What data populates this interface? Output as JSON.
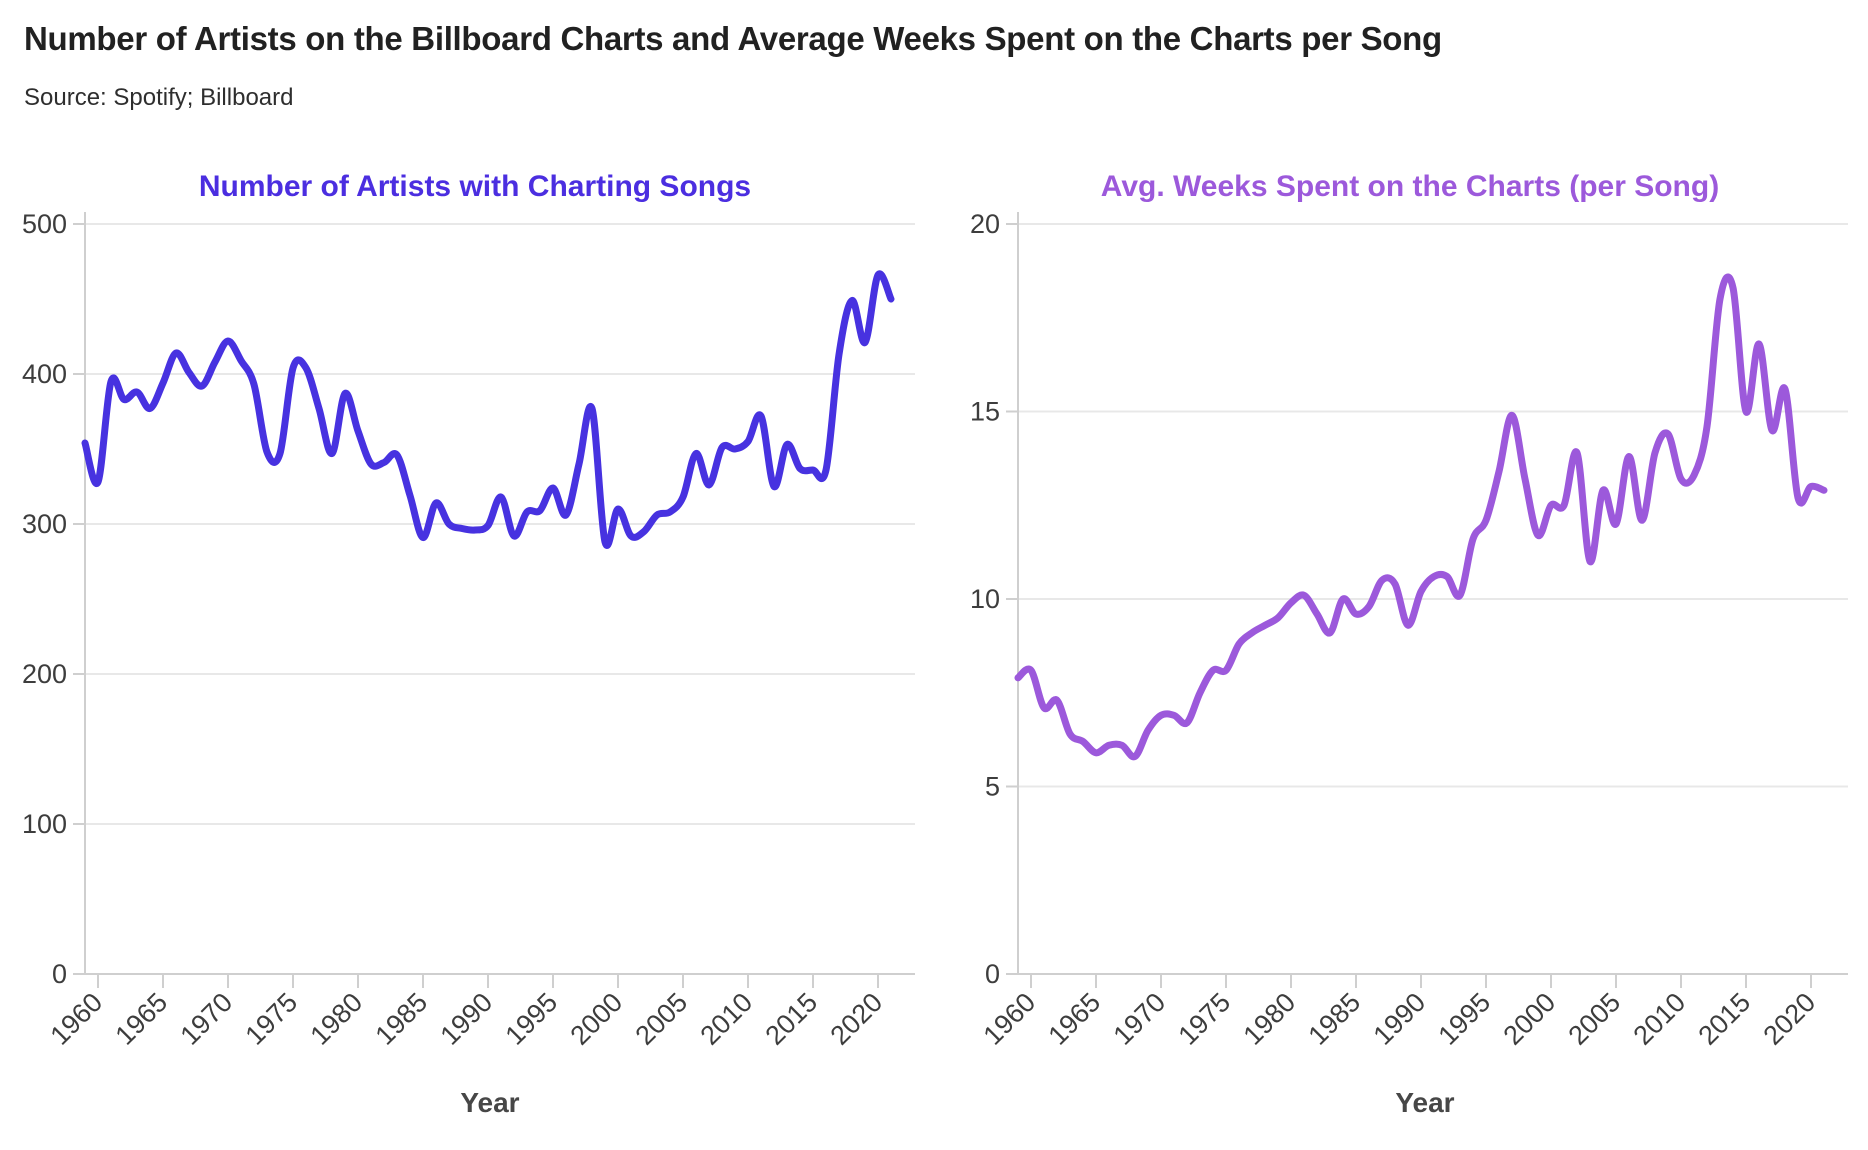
{
  "page": {
    "title": "Number of Artists on the Billboard Charts and Average Weeks Spent on the Charts per Song",
    "source": "Source: Spotify; Billboard"
  },
  "chart_data": [
    {
      "type": "line",
      "title": "Number of Artists with Charting Songs",
      "xlabel": "Year",
      "line_color": "#4732E0",
      "title_color": "#4B2EE0",
      "grid": "horizontal",
      "ylim": [
        0,
        500
      ],
      "yticks": [
        0,
        100,
        200,
        300,
        400,
        500
      ],
      "xticks": [
        1960,
        1965,
        1970,
        1975,
        1980,
        1985,
        1990,
        1995,
        2000,
        2005,
        2010,
        2015,
        2020
      ],
      "x": [
        1959,
        1960,
        1961,
        1962,
        1963,
        1964,
        1965,
        1966,
        1967,
        1968,
        1969,
        1970,
        1971,
        1972,
        1973,
        1974,
        1975,
        1976,
        1977,
        1978,
        1979,
        1980,
        1981,
        1982,
        1983,
        1984,
        1985,
        1986,
        1987,
        1988,
        1989,
        1990,
        1991,
        1992,
        1993,
        1994,
        1995,
        1996,
        1997,
        1998,
        1999,
        2000,
        2001,
        2002,
        2003,
        2004,
        2005,
        2006,
        2007,
        2008,
        2009,
        2010,
        2011,
        2012,
        2013,
        2014,
        2015,
        2016,
        2017,
        2018,
        2019,
        2020,
        2021
      ],
      "values": [
        354,
        328,
        395,
        383,
        388,
        377,
        394,
        414,
        401,
        392,
        408,
        422,
        409,
        393,
        348,
        347,
        404,
        404,
        377,
        347,
        387,
        362,
        340,
        341,
        346,
        319,
        291,
        314,
        300,
        297,
        296,
        299,
        318,
        292,
        308,
        309,
        324,
        306,
        340,
        377,
        288,
        310,
        292,
        295,
        306,
        308,
        318,
        347,
        326,
        351,
        350,
        355,
        372,
        325,
        353,
        337,
        336,
        336,
        413,
        449,
        421,
        466,
        450
      ]
    },
    {
      "type": "line",
      "title": "Avg. Weeks Spent on the Charts (per Song)",
      "xlabel": "Year",
      "line_color": "#9C59DB",
      "title_color": "#9C59DB",
      "grid": "horizontal",
      "ylim": [
        0,
        20
      ],
      "yticks": [
        0,
        5,
        10,
        15,
        20
      ],
      "xticks": [
        1960,
        1965,
        1970,
        1975,
        1980,
        1985,
        1990,
        1995,
        2000,
        2005,
        2010,
        2015,
        2020
      ],
      "x": [
        1959,
        1960,
        1961,
        1962,
        1963,
        1964,
        1965,
        1966,
        1967,
        1968,
        1969,
        1970,
        1971,
        1972,
        1973,
        1974,
        1975,
        1976,
        1977,
        1978,
        1979,
        1980,
        1981,
        1982,
        1983,
        1984,
        1985,
        1986,
        1987,
        1988,
        1989,
        1990,
        1991,
        1992,
        1993,
        1994,
        1995,
        1996,
        1997,
        1998,
        1999,
        2000,
        2001,
        2002,
        2003,
        2004,
        2005,
        2006,
        2007,
        2008,
        2009,
        2010,
        2011,
        2012,
        2013,
        2014,
        2015,
        2016,
        2017,
        2018,
        2019,
        2020,
        2021
      ],
      "values": [
        7.9,
        8.1,
        7.1,
        7.3,
        6.4,
        6.2,
        5.9,
        6.1,
        6.1,
        5.8,
        6.5,
        6.9,
        6.9,
        6.7,
        7.5,
        8.1,
        8.1,
        8.8,
        9.1,
        9.3,
        9.5,
        9.9,
        10.1,
        9.6,
        9.1,
        10.0,
        9.6,
        9.8,
        10.5,
        10.4,
        9.3,
        10.2,
        10.6,
        10.6,
        10.1,
        11.6,
        12.1,
        13.4,
        14.9,
        13.2,
        11.7,
        12.5,
        12.5,
        13.9,
        11.0,
        12.9,
        12.0,
        13.8,
        12.1,
        13.9,
        14.4,
        13.2,
        13.3,
        14.6,
        18.0,
        18.3,
        15.0,
        16.8,
        14.5,
        15.6,
        12.7,
        13.0,
        12.9
      ]
    }
  ],
  "colors": {
    "gridline": "#e8e8e8",
    "axis": "#cfcfcf",
    "tick_text": "#3d3d3d"
  }
}
